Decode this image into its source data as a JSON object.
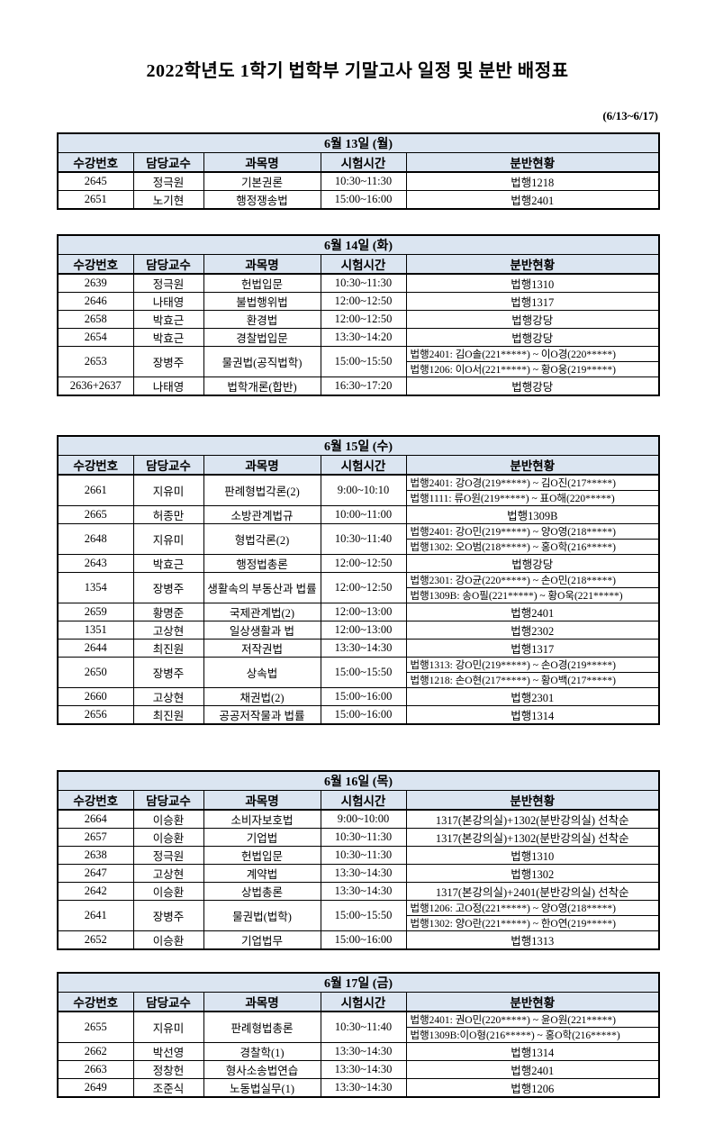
{
  "page": {
    "title": "2022학년도 1학기 법학부 기말고사 일정 및 분반 배정표",
    "date_range": "(6/13~6/17)"
  },
  "colors": {
    "header_bg": "#dbe5f1",
    "border": "#000000"
  },
  "columns": [
    "수강번호",
    "담당교수",
    "과목명",
    "시험시간",
    "분반현황"
  ],
  "tables": [
    {
      "day": "6월 13일 (월)",
      "rows": [
        {
          "code": "2645",
          "prof": "정극원",
          "subject": "기본권론",
          "time": "10:30~11:30",
          "rooms": [
            "법행1218"
          ]
        },
        {
          "code": "2651",
          "prof": "노기현",
          "subject": "행정쟁송법",
          "time": "15:00~16:00",
          "rooms": [
            "법행2401"
          ]
        }
      ]
    },
    {
      "day": "6월 14일 (화)",
      "rows": [
        {
          "code": "2639",
          "prof": "정극원",
          "subject": "헌법입문",
          "time": "10:30~11:30",
          "rooms": [
            "법행1310"
          ]
        },
        {
          "code": "2646",
          "prof": "나태영",
          "subject": "불법행위법",
          "time": "12:00~12:50",
          "rooms": [
            "법행1317"
          ]
        },
        {
          "code": "2658",
          "prof": "박효근",
          "subject": "환경법",
          "time": "12:00~12:50",
          "rooms": [
            "법행강당"
          ]
        },
        {
          "code": "2654",
          "prof": "박효근",
          "subject": "경찰법입문",
          "time": "13:30~14:20",
          "rooms": [
            "법행강당"
          ]
        },
        {
          "code": "2653",
          "prof": "장병주",
          "subject": "물권법(공직법학)",
          "time": "15:00~15:50",
          "rooms": [
            "법행2401: 김O솔(221*****) ~ 이O경(220*****)",
            "법행1206: 이O서(221*****) ~ 황O웅(219*****)"
          ]
        },
        {
          "code": "2636+2637",
          "prof": "나태영",
          "subject": "법학개론(합반)",
          "time": "16:30~17:20",
          "rooms": [
            "법행강당"
          ]
        }
      ]
    },
    {
      "day": "6월 15일 (수)",
      "rows": [
        {
          "code": "2661",
          "prof": "지유미",
          "subject": "판례형법각론(2)",
          "time": "9:00~10:10",
          "rooms": [
            "법행2401: 강O경(219*****) ~ 김O진(217*****)",
            "법행1111: 류O원(219*****) ~ 표O해(220*****)"
          ]
        },
        {
          "code": "2665",
          "prof": "허종만",
          "subject": "소방관계법규",
          "time": "10:00~11:00",
          "rooms": [
            "법행1309B"
          ]
        },
        {
          "code": "2648",
          "prof": "지유미",
          "subject": "형법각론(2)",
          "time": "10:30~11:40",
          "rooms": [
            "법행2401: 강O민(219*****) ~ 양O영(218*****)",
            "법행1302: 오O범(218*****) ~ 홍O학(216*****)"
          ]
        },
        {
          "code": "2643",
          "prof": "박효근",
          "subject": "행정법총론",
          "time": "12:00~12:50",
          "rooms": [
            "법행강당"
          ]
        },
        {
          "code": "1354",
          "prof": "장병주",
          "subject": "생활속의 부동산과 법률",
          "time": "12:00~12:50",
          "rooms": [
            "법행2301: 강O균(220*****) ~ 손O민(218*****)",
            "법행1309B: 송O필(221*****) ~ 황O욱(221*****)"
          ]
        },
        {
          "code": "2659",
          "prof": "황명준",
          "subject": "국제관계법(2)",
          "time": "12:00~13:00",
          "rooms": [
            "법행2401"
          ]
        },
        {
          "code": "1351",
          "prof": "고상현",
          "subject": "일상생활과 법",
          "time": "12:00~13:00",
          "rooms": [
            "법행2302"
          ]
        },
        {
          "code": "2644",
          "prof": "최진원",
          "subject": "저작권법",
          "time": "13:30~14:30",
          "rooms": [
            "법행1317"
          ]
        },
        {
          "code": "2650",
          "prof": "장병주",
          "subject": "상속법",
          "time": "15:00~15:50",
          "rooms": [
            "법행1313: 강O민(219*****) ~ 손O경(219*****)",
            "법행1218: 손O현(217*****) ~ 황O백(217*****)"
          ]
        },
        {
          "code": "2660",
          "prof": "고상현",
          "subject": "채권법(2)",
          "time": "15:00~16:00",
          "rooms": [
            "법행2301"
          ]
        },
        {
          "code": "2656",
          "prof": "최진원",
          "subject": "공공저작물과 법률",
          "time": "15:00~16:00",
          "rooms": [
            "법행1314"
          ]
        }
      ]
    },
    {
      "day": "6월 16일 (목)",
      "rows": [
        {
          "code": "2664",
          "prof": "이승환",
          "subject": "소비자보호법",
          "time": "9:00~10:00",
          "rooms": [
            "1317(본강의실)+1302(분반강의실) 선착순"
          ]
        },
        {
          "code": "2657",
          "prof": "이승환",
          "subject": "기업법",
          "time": "10:30~11:30",
          "rooms": [
            "1317(본강의실)+1302(분반강의실) 선착순"
          ]
        },
        {
          "code": "2638",
          "prof": "정극원",
          "subject": "헌법입문",
          "time": "10:30~11:30",
          "rooms": [
            "법행1310"
          ]
        },
        {
          "code": "2647",
          "prof": "고상현",
          "subject": "계약법",
          "time": "13:30~14:30",
          "rooms": [
            "법행1302"
          ]
        },
        {
          "code": "2642",
          "prof": "이승환",
          "subject": "상법총론",
          "time": "13:30~14:30",
          "rooms": [
            "1317(본강의실)+2401(분반강의실) 선착순"
          ]
        },
        {
          "code": "2641",
          "prof": "장병주",
          "subject": "물권법(법학)",
          "time": "15:00~15:50",
          "rooms": [
            "법행1206: 고O정(221*****) ~ 양O영(218*****)",
            "법행1302: 양O란(221*****) ~ 한O연(219*****)"
          ]
        },
        {
          "code": "2652",
          "prof": "이승환",
          "subject": "기업법무",
          "time": "15:00~16:00",
          "rooms": [
            "법행1313"
          ]
        }
      ]
    },
    {
      "day": "6월 17일 (금)",
      "rows": [
        {
          "code": "2655",
          "prof": "지유미",
          "subject": "판례형법총론",
          "time": "10:30~11:40",
          "rooms": [
            "법행2401: 권O민(220*****) ~ 윤O원(221*****)",
            "법행1309B:이O형(216*****) ~ 홍O학(216*****)"
          ]
        },
        {
          "code": "2662",
          "prof": "박선영",
          "subject": "경찰학(1)",
          "time": "13:30~14:30",
          "rooms": [
            "법행1314"
          ]
        },
        {
          "code": "2663",
          "prof": "정창헌",
          "subject": "형사소송법연습",
          "time": "13:30~14:30",
          "rooms": [
            "법행2401"
          ]
        },
        {
          "code": "2649",
          "prof": "조준식",
          "subject": "노동법실무(1)",
          "time": "13:30~14:30",
          "rooms": [
            "법행1206"
          ]
        }
      ]
    }
  ]
}
